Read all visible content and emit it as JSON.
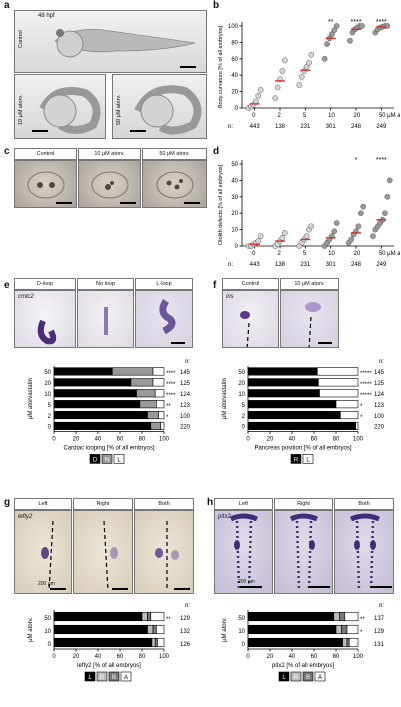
{
  "panels": {
    "a": {
      "label": "a",
      "hpf": "48 hpf",
      "control": "Control",
      "atorv10": "10 μM atorv.",
      "atorv50": "50 μM atorv."
    },
    "b": {
      "label": "b"
    },
    "c": {
      "label": "c",
      "headers": [
        "Control",
        "10 μM atorv.",
        "50 μM atorv."
      ]
    },
    "d": {
      "label": "d"
    },
    "e": {
      "label": "e",
      "headers": [
        "D-loop",
        "No loop",
        "L-loop"
      ],
      "gene": "cmlc2"
    },
    "f": {
      "label": "f",
      "headers": [
        "Control",
        "10 μM atorv."
      ],
      "gene": "ins"
    },
    "g": {
      "label": "g",
      "headers": [
        "Left",
        "Right",
        "Both"
      ],
      "gene": "lefty2",
      "scalebar": "200 μm"
    },
    "h": {
      "label": "h",
      "headers": [
        "Left",
        "Right",
        "Both"
      ],
      "gene": "pitx2",
      "scalebar": "200 μm"
    }
  },
  "chart_data": [
    {
      "id": "b",
      "type": "scatter",
      "ylabel": "Body curvature [% of all embryos]",
      "ylim": [
        0,
        100
      ],
      "yticks": [
        0,
        20,
        40,
        60,
        80,
        100
      ],
      "categories": [
        "0",
        "2",
        "5",
        "10",
        "20",
        "50 μM atorv."
      ],
      "n_label": "n:",
      "n": [
        "443",
        "138",
        "231",
        "301",
        "248",
        "249"
      ],
      "sig": [
        "",
        "",
        "",
        "**",
        "****",
        "****"
      ],
      "means": [
        5,
        33,
        46,
        85,
        96,
        99
      ],
      "points": [
        [
          0,
          2,
          4,
          8,
          15,
          22
        ],
        [
          12,
          25,
          35,
          45,
          58
        ],
        [
          28,
          38,
          45,
          50,
          55,
          65
        ],
        [
          60,
          78,
          85,
          90,
          95,
          100
        ],
        [
          82,
          92,
          96,
          98,
          100,
          100
        ],
        [
          92,
          96,
          98,
          99,
          100,
          100
        ]
      ]
    },
    {
      "id": "d",
      "type": "scatter",
      "ylabel": "Otolith defects [% of all embryos]",
      "ylim": [
        0,
        50
      ],
      "yticks": [
        0,
        10,
        20,
        30,
        40,
        50
      ],
      "categories": [
        "0",
        "2",
        "5",
        "10",
        "20",
        "50 μM atorv."
      ],
      "n_label": "n:",
      "n": [
        "443",
        "138",
        "231",
        "301",
        "248",
        "249"
      ],
      "sig": [
        "",
        "",
        "",
        "",
        "*",
        "****"
      ],
      "means": [
        1,
        3,
        4,
        5,
        8,
        16
      ],
      "points": [
        [
          0,
          0,
          1,
          2,
          3,
          6
        ],
        [
          0,
          1,
          3,
          5,
          8
        ],
        [
          0,
          2,
          4,
          6,
          10,
          12
        ],
        [
          0,
          2,
          4,
          6,
          9,
          14
        ],
        [
          2,
          4,
          7,
          9,
          12,
          20,
          24
        ],
        [
          6,
          10,
          12,
          14,
          16,
          20,
          30,
          40
        ]
      ]
    },
    {
      "id": "e",
      "type": "bar",
      "xlabel": "Cardiac looping [% of all embryos]",
      "ylabel": "μM atorvastatin",
      "xticks": [
        0,
        20,
        40,
        60,
        80,
        100
      ],
      "categories": [
        "50",
        "20",
        "10",
        "5",
        "2",
        "0"
      ],
      "n_label": "n:",
      "n": [
        "145",
        "125",
        "124",
        "123",
        "100",
        "220"
      ],
      "sig": [
        "****",
        "****",
        "****",
        "**",
        "*",
        ""
      ],
      "series": [
        {
          "name": "D",
          "values": [
            53,
            70,
            75,
            78,
            85,
            88
          ],
          "color": "#000000"
        },
        {
          "name": "N",
          "values": [
            37,
            20,
            17,
            15,
            10,
            9
          ],
          "color": "#999999"
        },
        {
          "name": "L",
          "values": [
            10,
            10,
            8,
            7,
            5,
            3
          ],
          "color": "#ffffff"
        }
      ]
    },
    {
      "id": "f",
      "type": "bar",
      "xlabel": "Pancreas position [% of all embryos]",
      "ylabel": "μM atorvastatin",
      "xticks": [
        0,
        20,
        40,
        60,
        80,
        100
      ],
      "categories": [
        "50",
        "20",
        "10",
        "5",
        "2",
        "0"
      ],
      "n_label": "n:",
      "n": [
        "145",
        "125",
        "124",
        "123",
        "100",
        "220"
      ],
      "sig": [
        "*****",
        "*****",
        "*****",
        "*",
        "*",
        ""
      ],
      "series": [
        {
          "name": "R",
          "values": [
            63,
            64,
            65,
            80,
            84,
            98
          ],
          "color": "#000000"
        },
        {
          "name": "L",
          "values": [
            37,
            36,
            35,
            20,
            16,
            2
          ],
          "color": "#ffffff"
        }
      ]
    },
    {
      "id": "g",
      "type": "bar",
      "xlabel": "lefty2 [% of all embryos]",
      "ylabel": "μM atorv.",
      "xticks": [
        0,
        20,
        40,
        60,
        80,
        100
      ],
      "categories": [
        "50",
        "10",
        "0"
      ],
      "n_label": "n:",
      "n": [
        "129",
        "132",
        "126"
      ],
      "sig": [
        "**",
        "",
        ""
      ],
      "series": [
        {
          "name": "L",
          "values": [
            80,
            85,
            89
          ],
          "color": "#000000"
        },
        {
          "name": "R",
          "values": [
            5,
            5,
            3
          ],
          "color": "#bbbbbb"
        },
        {
          "name": "B",
          "values": [
            3,
            3,
            2
          ],
          "color": "#777777"
        },
        {
          "name": "A",
          "values": [
            12,
            7,
            6
          ],
          "color": "#ffffff"
        }
      ]
    },
    {
      "id": "h",
      "type": "bar",
      "xlabel": "pitx2 [% of all embryos]",
      "ylabel": "μM atorv.",
      "xticks": [
        0,
        20,
        40,
        60,
        80,
        100
      ],
      "categories": [
        "50",
        "10",
        "0"
      ],
      "n_label": "n:",
      "n": [
        "137",
        "129",
        "131"
      ],
      "sig": [
        "**",
        "*",
        ""
      ],
      "series": [
        {
          "name": "L",
          "values": [
            78,
            80,
            86
          ],
          "color": "#000000"
        },
        {
          "name": "R",
          "values": [
            5,
            5,
            4
          ],
          "color": "#bbbbbb"
        },
        {
          "name": "B",
          "values": [
            5,
            5,
            2
          ],
          "color": "#777777"
        },
        {
          "name": "A",
          "values": [
            12,
            10,
            8
          ],
          "color": "#ffffff"
        }
      ]
    }
  ],
  "legends": {
    "e": [
      {
        "key": "D",
        "bg": "#000000",
        "fg": "#ffffff"
      },
      {
        "key": "N",
        "bg": "#999999",
        "fg": "#ffffff"
      },
      {
        "key": "L",
        "bg": "#ffffff",
        "fg": "#000000"
      }
    ],
    "f": [
      {
        "key": "R",
        "bg": "#000000",
        "fg": "#ffffff"
      },
      {
        "key": "L",
        "bg": "#ffffff",
        "fg": "#000000"
      }
    ],
    "g": [
      {
        "key": "L",
        "bg": "#000000",
        "fg": "#ffffff"
      },
      {
        "key": "R",
        "bg": "#bbbbbb",
        "fg": "#ffffff"
      },
      {
        "key": "B",
        "bg": "#777777",
        "fg": "#ffffff"
      },
      {
        "key": "A",
        "bg": "#ffffff",
        "fg": "#000000"
      }
    ],
    "h": [
      {
        "key": "L",
        "bg": "#000000",
        "fg": "#ffffff"
      },
      {
        "key": "R",
        "bg": "#bbbbbb",
        "fg": "#ffffff"
      },
      {
        "key": "B",
        "bg": "#777777",
        "fg": "#ffffff"
      },
      {
        "key": "A",
        "bg": "#ffffff",
        "fg": "#000000"
      }
    ]
  }
}
